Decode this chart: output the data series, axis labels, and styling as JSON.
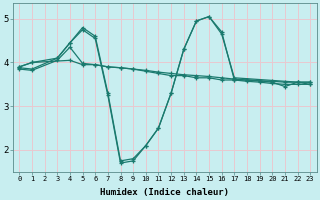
{
  "xlabel": "Humidex (Indice chaleur)",
  "xlim": [
    -0.5,
    23.5
  ],
  "ylim": [
    1.5,
    5.35
  ],
  "xticks": [
    0,
    1,
    2,
    3,
    4,
    5,
    6,
    7,
    8,
    9,
    10,
    11,
    12,
    13,
    14,
    15,
    16,
    17,
    18,
    19,
    20,
    21,
    22,
    23
  ],
  "yticks": [
    2,
    3,
    4,
    5
  ],
  "bg_color": "#c8eef0",
  "grid_color": "#e8c8d0",
  "line_color": "#1a7a6e",
  "lines": [
    {
      "x": [
        0,
        1,
        4,
        5,
        6,
        7,
        8,
        9,
        10,
        11,
        12,
        13,
        14,
        15,
        16,
        17,
        18,
        19,
        20,
        21,
        22,
        23
      ],
      "y": [
        3.9,
        4.0,
        4.05,
        3.95,
        3.95,
        3.9,
        3.88,
        3.85,
        3.82,
        3.78,
        3.75,
        3.72,
        3.7,
        3.68,
        3.65,
        3.62,
        3.6,
        3.58,
        3.57,
        3.55,
        3.55,
        3.55
      ],
      "style": "-"
    },
    {
      "x": [
        0,
        1,
        3,
        4,
        5,
        6,
        7,
        8,
        9,
        10,
        11,
        12,
        13,
        14,
        15,
        16,
        17,
        22,
        23
      ],
      "y": [
        3.9,
        4.0,
        4.1,
        4.45,
        4.8,
        4.6,
        3.3,
        1.75,
        1.8,
        2.1,
        2.5,
        3.3,
        4.3,
        4.95,
        5.05,
        4.65,
        3.65,
        3.55,
        3.55
      ],
      "style": "-"
    },
    {
      "x": [
        0,
        1,
        3,
        4,
        5,
        6,
        7,
        8,
        9,
        10,
        11,
        12,
        13,
        14,
        15,
        16,
        17,
        18,
        19,
        20,
        21,
        22,
        23
      ],
      "y": [
        3.88,
        3.85,
        4.1,
        4.45,
        4.75,
        4.55,
        3.25,
        1.7,
        1.75,
        2.1,
        2.5,
        3.3,
        4.3,
        4.95,
        5.05,
        4.7,
        3.6,
        3.6,
        3.58,
        3.55,
        3.45,
        3.55,
        3.5
      ],
      "style": "-"
    },
    {
      "x": [
        0,
        1,
        3,
        4,
        5,
        6,
        7,
        8,
        9,
        10,
        11,
        12,
        13,
        14,
        15,
        16,
        17,
        18,
        19,
        20,
        21,
        22,
        23
      ],
      "y": [
        3.85,
        3.82,
        4.05,
        4.35,
        3.98,
        3.95,
        3.9,
        3.88,
        3.85,
        3.8,
        3.75,
        3.7,
        3.7,
        3.65,
        3.65,
        3.6,
        3.6,
        3.57,
        3.55,
        3.52,
        3.5,
        3.5,
        3.5
      ],
      "style": "-"
    }
  ]
}
